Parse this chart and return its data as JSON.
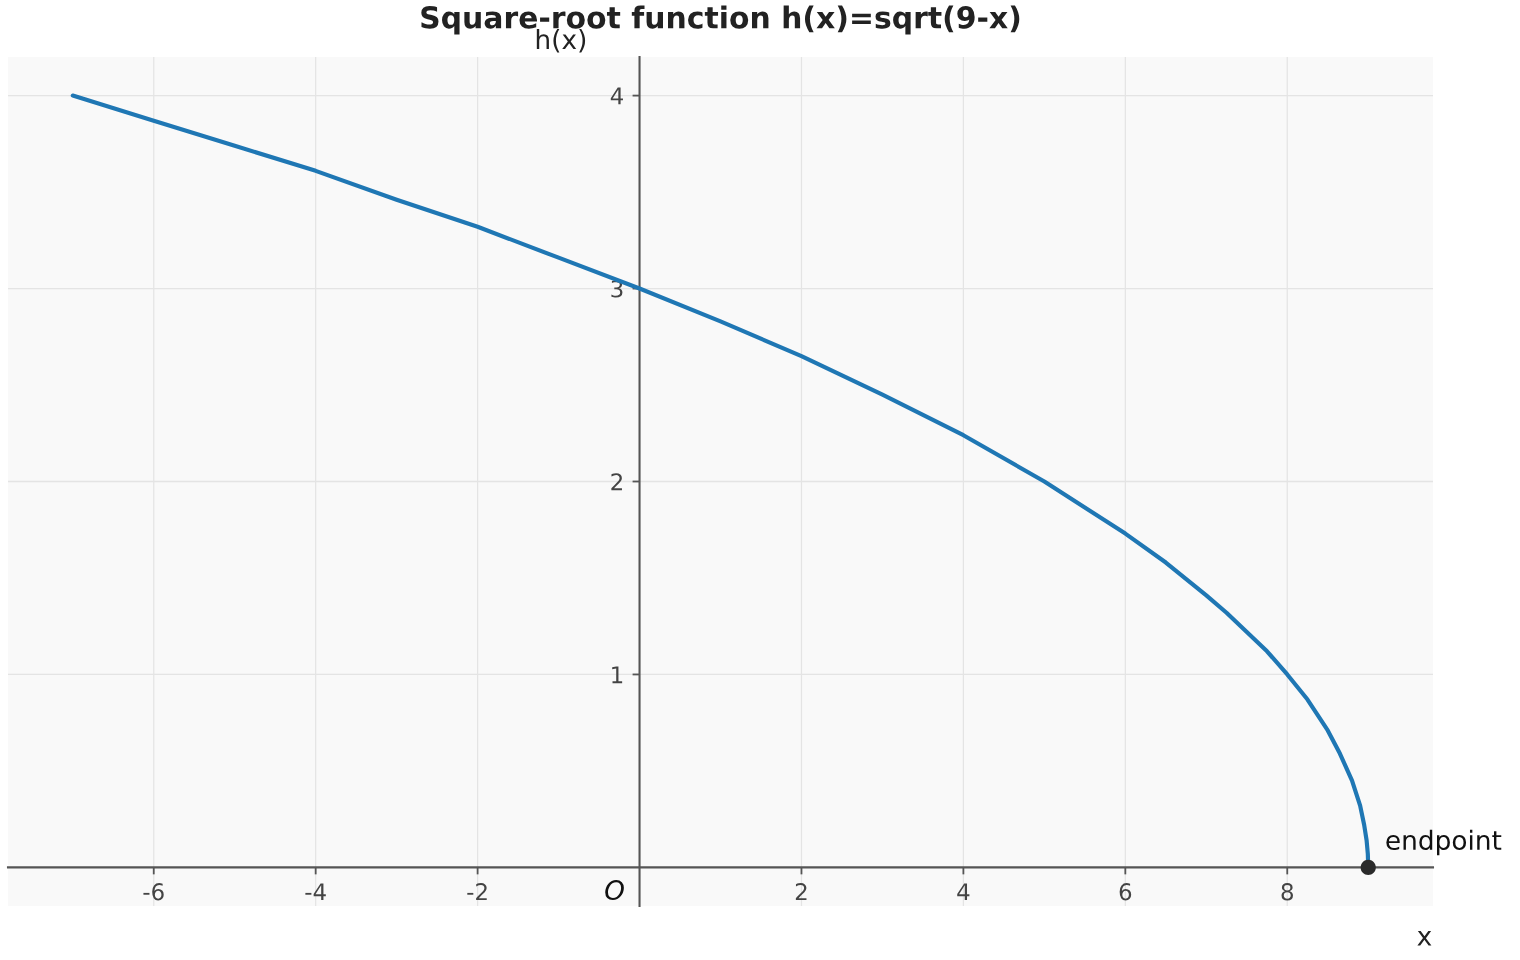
{
  "chart_data": {
    "type": "line",
    "title": "Square-root function h(x)=sqrt(9-x)",
    "xlabel": "x",
    "ylabel": "h(x)",
    "series": [
      {
        "color": "#1f77b4",
        "x": [
          -7,
          -6,
          -5,
          -4,
          -3,
          -2,
          -1,
          0,
          1,
          2,
          3,
          4,
          5,
          6,
          6.5,
          7,
          7.25,
          7.5,
          7.75,
          8,
          8.25,
          8.5,
          8.65,
          8.8,
          8.9,
          8.95,
          8.98,
          8.995,
          9
        ],
        "values": [
          4.0,
          3.87,
          3.74,
          3.61,
          3.46,
          3.32,
          3.16,
          3.0,
          2.83,
          2.65,
          2.45,
          2.24,
          2.0,
          1.73,
          1.58,
          1.41,
          1.32,
          1.22,
          1.12,
          1.0,
          0.87,
          0.71,
          0.59,
          0.45,
          0.32,
          0.22,
          0.14,
          0.07,
          0.0
        ]
      },
      {
        "type": "scatter",
        "color": "#2b2b2b",
        "marker": "circle",
        "x": [
          9
        ],
        "values": [
          0
        ]
      }
    ],
    "annotations": [
      {
        "text": "endpoint",
        "x": 9,
        "y": 0
      },
      "O"
    ],
    "xlim": [
      -7.8,
      9.8
    ],
    "ylim": [
      -0.2,
      4.2
    ],
    "xticks": [
      -6,
      -4,
      -2,
      2,
      4,
      6,
      8
    ],
    "yticks": [
      1,
      2,
      3,
      4
    ],
    "grid": true
  }
}
